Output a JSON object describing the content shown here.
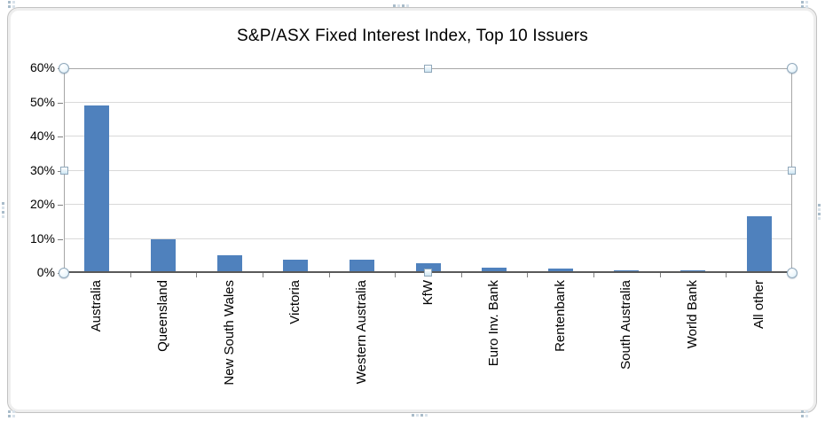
{
  "chart_data": {
    "type": "bar",
    "title": "S&P/ASX Fixed Interest Index, Top 10 Issuers",
    "categories": [
      "Australia",
      "Queensland",
      "New South Wales",
      "Victoria",
      "Western Australia",
      "KfW",
      "Euro Inv. Bank",
      "Rentenbank",
      "South Australia",
      "World Bank",
      "All other"
    ],
    "values": [
      49,
      10,
      5.1,
      3.8,
      3.9,
      2.8,
      1.6,
      1.2,
      0.8,
      0.8,
      16.5
    ],
    "xlabel": "",
    "ylabel": "",
    "ylim": [
      0,
      60
    ],
    "ytick_step": 10,
    "ytick_labels": [
      "0%",
      "10%",
      "20%",
      "30%",
      "40%",
      "50%",
      "60%"
    ],
    "grid": true,
    "legend": false,
    "bar_color": "#4F81BD",
    "gridline_color": "#D9D9D9",
    "axis_color": "#595959",
    "tick_color": "#7F7F7F",
    "text_color": "#000000"
  },
  "selection": {
    "plot_area_selected": true,
    "border_color": "#A6A6A6",
    "handle_stroke": "#8FA7BA",
    "handle_fill": "#CFE6F3"
  }
}
